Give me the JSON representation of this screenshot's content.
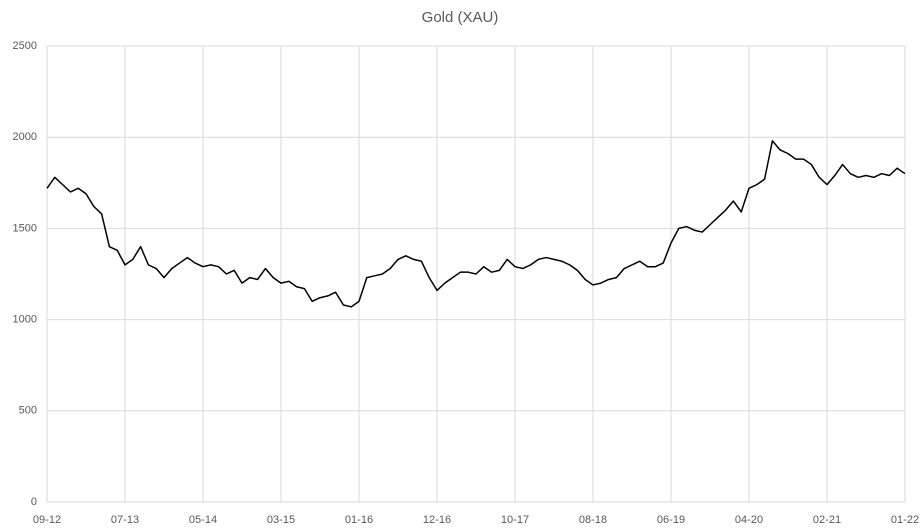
{
  "chart_data": {
    "type": "line",
    "title": "Gold (XAU)",
    "categories": [
      "09-12",
      null,
      null,
      null,
      null,
      null,
      null,
      null,
      null,
      null,
      "07-13",
      null,
      null,
      null,
      null,
      null,
      null,
      null,
      null,
      null,
      "05-14",
      null,
      null,
      null,
      null,
      null,
      null,
      null,
      null,
      null,
      "03-15",
      null,
      null,
      null,
      null,
      null,
      null,
      null,
      null,
      null,
      "01-16",
      null,
      null,
      null,
      null,
      null,
      null,
      null,
      null,
      null,
      "12-16",
      null,
      null,
      null,
      null,
      null,
      null,
      null,
      null,
      null,
      "10-17",
      null,
      null,
      null,
      null,
      null,
      null,
      null,
      null,
      null,
      "08-18",
      null,
      null,
      null,
      null,
      null,
      null,
      null,
      null,
      null,
      "06-19",
      null,
      null,
      null,
      null,
      null,
      null,
      null,
      null,
      null,
      "04-20",
      null,
      null,
      null,
      null,
      null,
      null,
      null,
      null,
      null,
      "02-21",
      null,
      null,
      null,
      null,
      null,
      null,
      null,
      null,
      null,
      "01-22"
    ],
    "values": [
      1720,
      1780,
      1740,
      1700,
      1720,
      1690,
      1620,
      1580,
      1400,
      1380,
      1300,
      1330,
      1400,
      1300,
      1280,
      1230,
      1280,
      1310,
      1340,
      1310,
      1290,
      1300,
      1290,
      1250,
      1270,
      1200,
      1230,
      1220,
      1280,
      1230,
      1200,
      1210,
      1180,
      1170,
      1100,
      1120,
      1130,
      1150,
      1080,
      1070,
      1100,
      1230,
      1240,
      1250,
      1280,
      1330,
      1350,
      1330,
      1320,
      1230,
      1160,
      1200,
      1230,
      1260,
      1260,
      1250,
      1290,
      1260,
      1270,
      1330,
      1290,
      1280,
      1300,
      1330,
      1340,
      1330,
      1320,
      1300,
      1270,
      1220,
      1190,
      1200,
      1220,
      1230,
      1280,
      1300,
      1320,
      1290,
      1290,
      1310,
      1420,
      1500,
      1510,
      1490,
      1480,
      1520,
      1560,
      1600,
      1650,
      1590,
      1720,
      1740,
      1770,
      1980,
      1930,
      1910,
      1880,
      1880,
      1850,
      1780,
      1740,
      1790,
      1850,
      1800,
      1780,
      1790,
      1780,
      1800,
      1790,
      1830,
      1800
    ],
    "color": "#000000",
    "ylim": [
      0,
      2500
    ],
    "yticks": [
      0,
      500,
      1000,
      1500,
      2000,
      2500
    ],
    "grid": true
  }
}
